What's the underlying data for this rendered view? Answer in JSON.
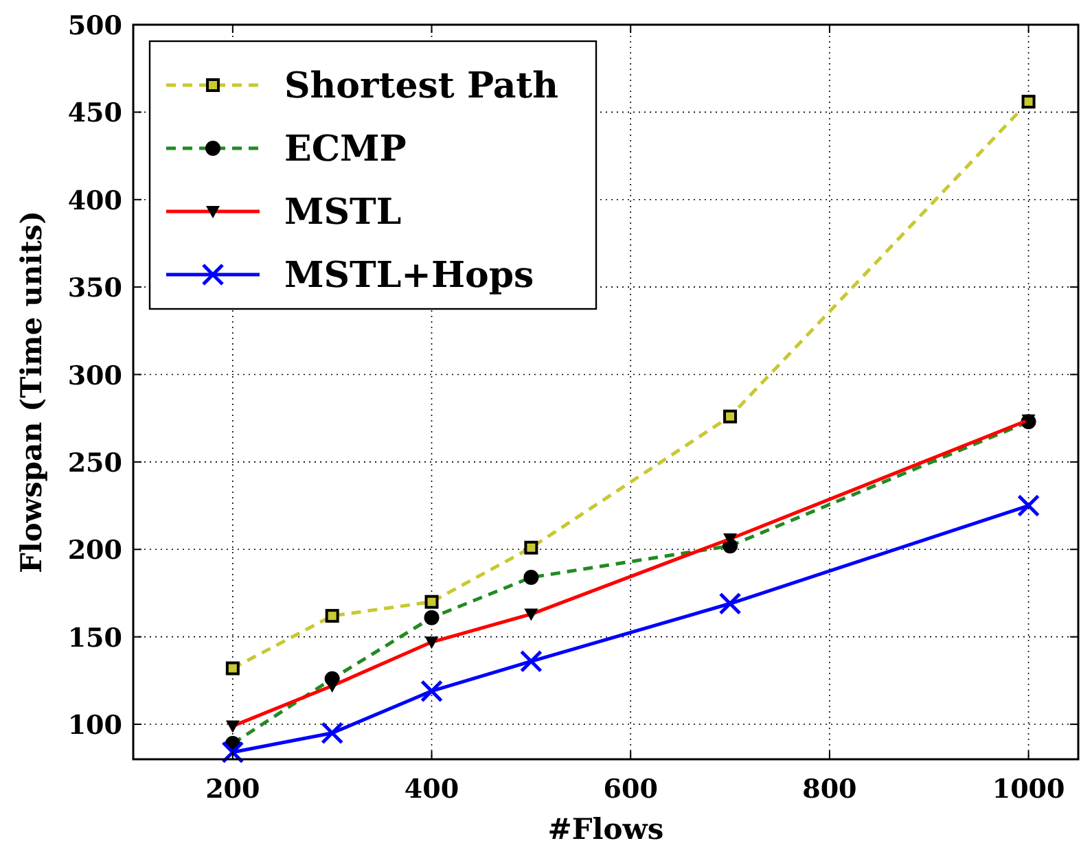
{
  "chart_data": {
    "type": "line",
    "xlabel": "#Flows",
    "ylabel": "Flowspan (Time units)",
    "x": [
      200,
      300,
      400,
      500,
      700,
      1000
    ],
    "series": [
      {
        "name": "Shortest Path",
        "color": "#c8c832",
        "marker": "square",
        "line_style": "dashed",
        "values": [
          132,
          162,
          170,
          201,
          276,
          456
        ]
      },
      {
        "name": "ECMP",
        "color": "#228b22",
        "marker": "circle",
        "line_style": "dashed",
        "values": [
          89,
          126,
          161,
          184,
          202,
          273
        ]
      },
      {
        "name": "MSTL",
        "color": "#ff0000",
        "marker": "triangle",
        "line_style": "solid",
        "values": [
          99,
          122,
          147,
          163,
          206,
          274
        ]
      },
      {
        "name": "MSTL+Hops",
        "color": "#0000ff",
        "marker": "cross",
        "line_style": "solid",
        "values": [
          84,
          95,
          119,
          136,
          169,
          225
        ]
      }
    ],
    "xlim": [
      100,
      1050
    ],
    "ylim": [
      80,
      500
    ],
    "xticks": [
      200,
      400,
      600,
      800,
      1000
    ],
    "yticks": [
      {
        "value": 80,
        "label": null
      },
      100,
      150,
      200,
      250,
      300,
      350,
      400,
      450,
      500
    ],
    "grid": true,
    "legend": "top left"
  }
}
